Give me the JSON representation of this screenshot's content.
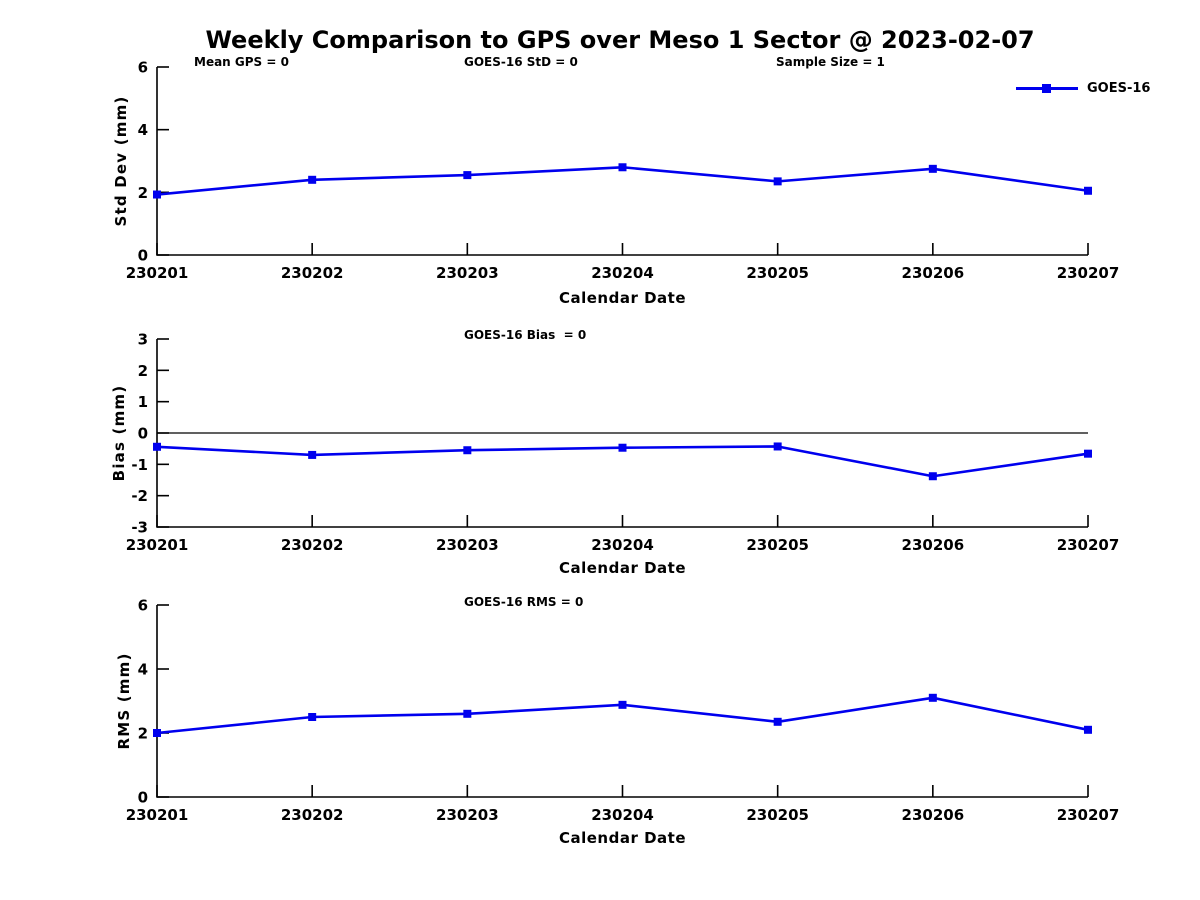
{
  "title": "Weekly Comparison to GPS over Meso 1 Sector @ 2023-02-07",
  "colors": {
    "series": "#0000EE",
    "axis": "#000000",
    "background": "#FFFFFF"
  },
  "legend": {
    "label": "GOES-16",
    "position": "top-right"
  },
  "chart_data": [
    {
      "type": "line",
      "name": "std-dev-plot",
      "annotations": [
        "Mean GPS = 0",
        "GOES-16 StD = 0",
        "Sample Size = 1"
      ],
      "ylabel": "Std Dev (mm)",
      "xlabel": "Calendar Date",
      "categories": [
        "230201",
        "230202",
        "230203",
        "230204",
        "230205",
        "230206",
        "230207"
      ],
      "series": [
        {
          "name": "GOES-16",
          "values": [
            1.93,
            2.4,
            2.55,
            2.8,
            2.35,
            2.75,
            2.05
          ]
        }
      ],
      "ylim": [
        0,
        6
      ],
      "yticks": [
        0,
        2,
        4,
        6
      ],
      "zero_line": false,
      "grid": false,
      "legend_position": "top-right"
    },
    {
      "type": "line",
      "name": "bias-plot",
      "annotations": [
        "GOES-16 Bias  = 0"
      ],
      "ylabel": "Bias (mm)",
      "xlabel": "Calendar Date",
      "categories": [
        "230201",
        "230202",
        "230203",
        "230204",
        "230205",
        "230206",
        "230207"
      ],
      "series": [
        {
          "name": "GOES-16",
          "values": [
            -0.44,
            -0.7,
            -0.55,
            -0.47,
            -0.43,
            -1.38,
            -0.66
          ]
        }
      ],
      "ylim": [
        -3,
        3
      ],
      "yticks": [
        -3,
        -2,
        -1,
        0,
        1,
        2,
        3
      ],
      "zero_line": true,
      "grid": false,
      "legend_position": "none"
    },
    {
      "type": "line",
      "name": "rms-plot",
      "annotations": [
        "GOES-16 RMS = 0"
      ],
      "ylabel": "RMS (mm)",
      "xlabel": "Calendar Date",
      "categories": [
        "230201",
        "230202",
        "230203",
        "230204",
        "230205",
        "230206",
        "230207"
      ],
      "series": [
        {
          "name": "GOES-16",
          "values": [
            2.0,
            2.5,
            2.6,
            2.88,
            2.35,
            3.1,
            2.1
          ]
        }
      ],
      "ylim": [
        0,
        6
      ],
      "yticks": [
        0,
        2,
        4,
        6
      ],
      "zero_line": false,
      "grid": false,
      "legend_position": "none"
    }
  ]
}
